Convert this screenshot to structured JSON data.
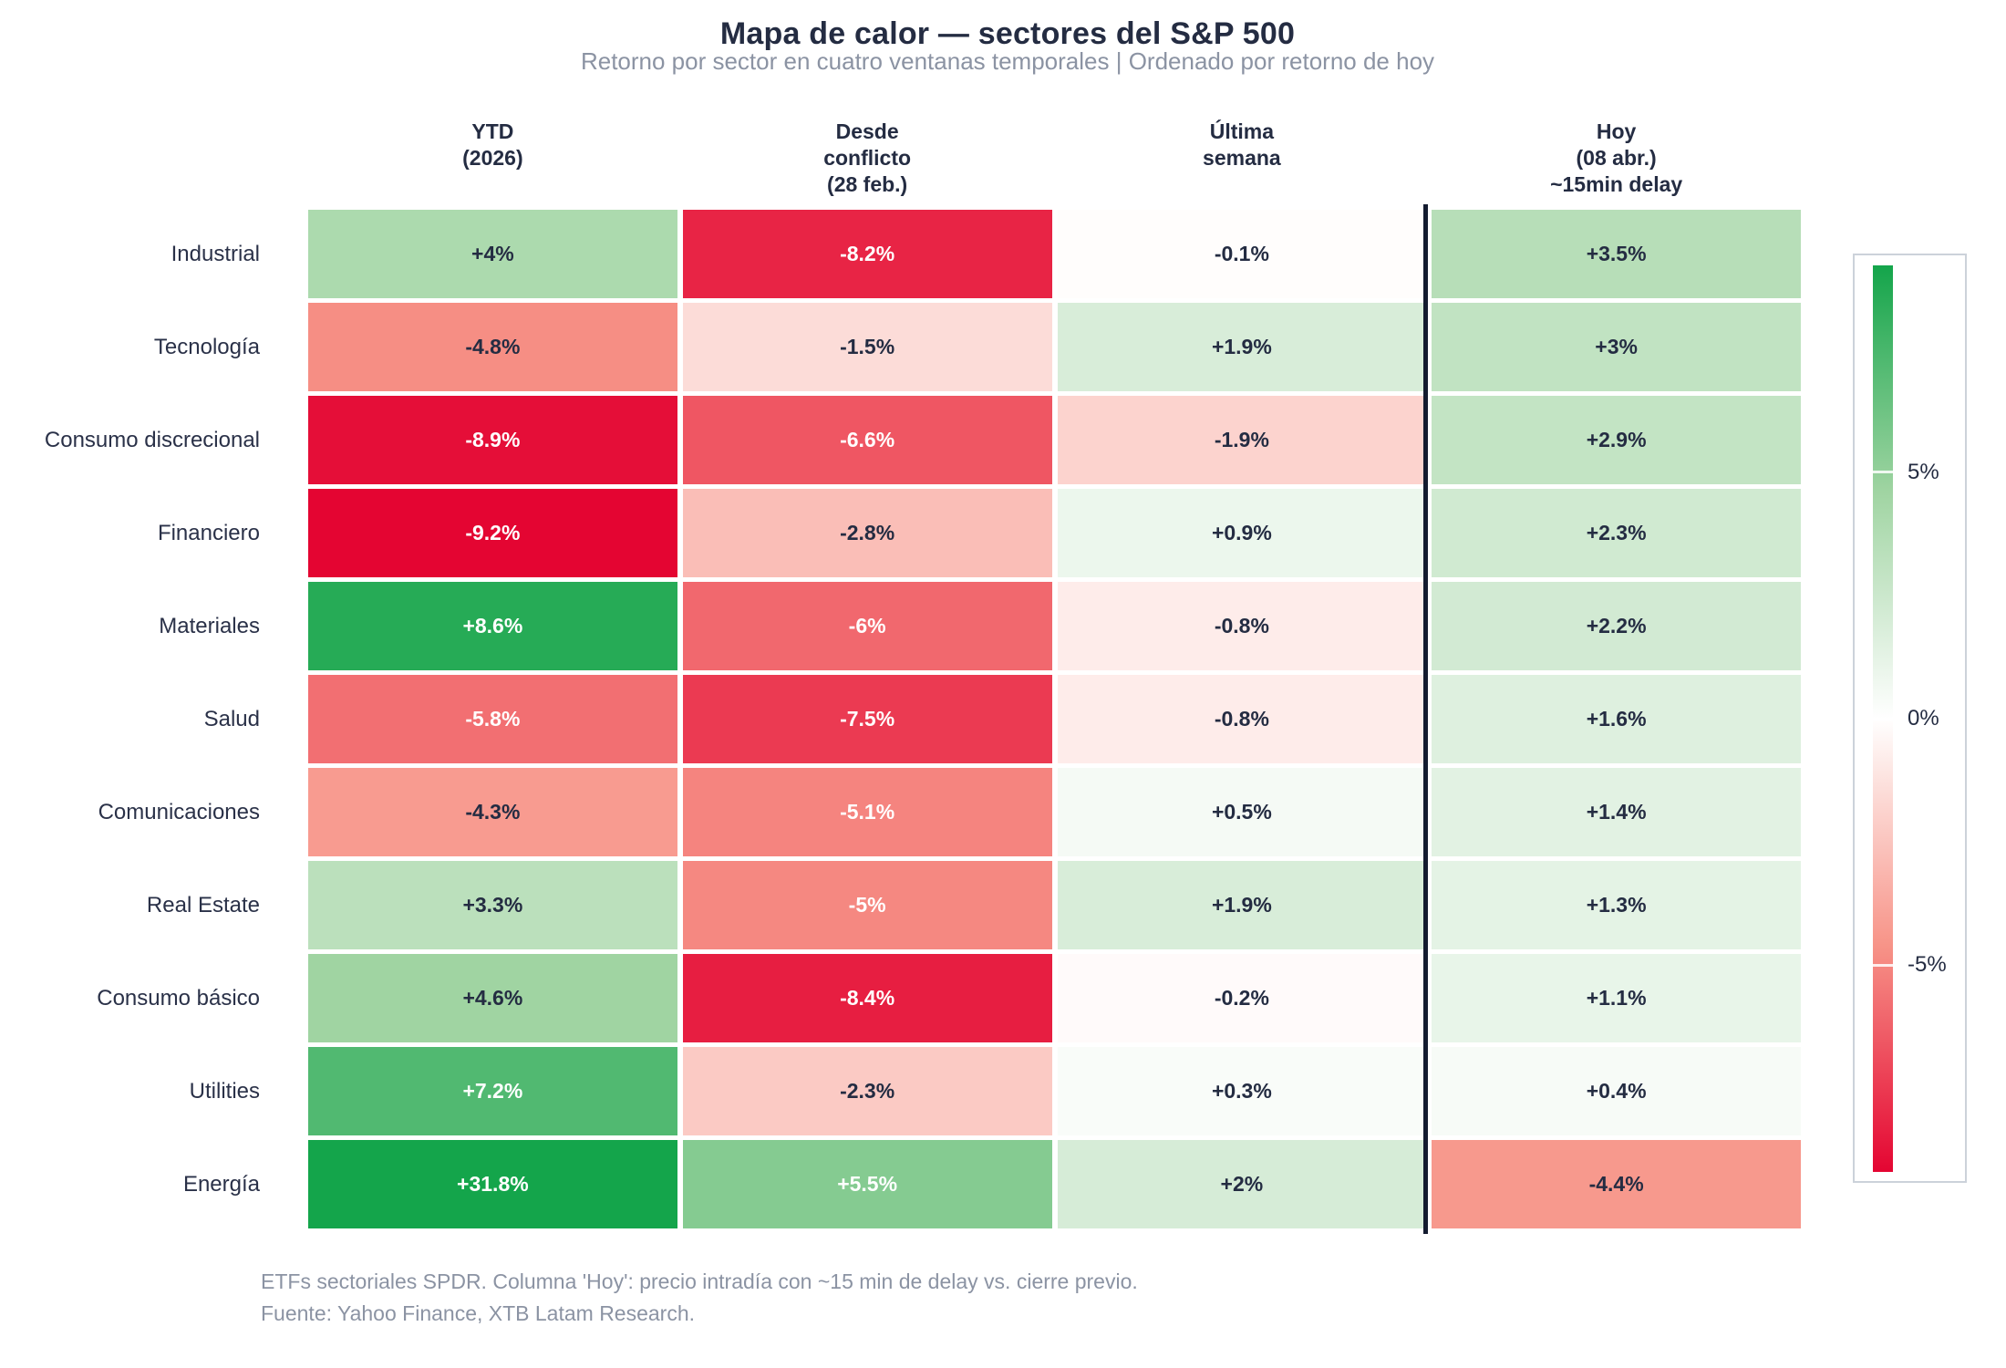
{
  "chart_data": {
    "type": "heatmap",
    "title": "Mapa de calor — sectores del S&P 500",
    "subtitle": "Retorno por sector en cuatro ventanas temporales | Ordenado por retorno de hoy",
    "column_headers": [
      [
        "YTD",
        "(2026)"
      ],
      [
        "Desde",
        "conflicto",
        "(28 feb.)"
      ],
      [
        "Última",
        "semana"
      ],
      [
        "Hoy",
        "(08 abr.)",
        "~15min delay"
      ]
    ],
    "rows": [
      "Industrial",
      "Tecnología",
      "Consumo discrecional",
      "Financiero",
      "Materiales",
      "Salud",
      "Comunicaciones",
      "Real Estate",
      "Consumo básico",
      "Utilities",
      "Energía"
    ],
    "values": [
      [
        4,
        -8.2,
        -0.1,
        3.5
      ],
      [
        -4.8,
        -1.5,
        1.9,
        3
      ],
      [
        -8.9,
        -6.6,
        -1.9,
        2.9
      ],
      [
        -9.2,
        -2.8,
        0.9,
        2.3
      ],
      [
        8.6,
        -6,
        -0.8,
        2.2
      ],
      [
        -5.8,
        -7.5,
        -0.8,
        1.6
      ],
      [
        -4.3,
        -5.1,
        0.5,
        1.4
      ],
      [
        3.3,
        -5,
        1.9,
        1.3
      ],
      [
        4.6,
        -8.4,
        -0.2,
        1.1
      ],
      [
        7.2,
        -2.3,
        0.3,
        0.4
      ],
      [
        31.8,
        5.5,
        2,
        -4.4
      ]
    ],
    "cell_labels": [
      [
        "+4%",
        "-8.2%",
        "-0.1%",
        "+3.5%"
      ],
      [
        "-4.8%",
        "-1.5%",
        "+1.9%",
        "+3%"
      ],
      [
        "-8.9%",
        "-6.6%",
        "-1.9%",
        "+2.9%"
      ],
      [
        "-9.2%",
        "-2.8%",
        "+0.9%",
        "+2.3%"
      ],
      [
        "+8.6%",
        "-6%",
        "-0.8%",
        "+2.2%"
      ],
      [
        "-5.8%",
        "-7.5%",
        "-0.8%",
        "+1.6%"
      ],
      [
        "-4.3%",
        "-5.1%",
        "+0.5%",
        "+1.4%"
      ],
      [
        "+3.3%",
        "-5%",
        "+1.9%",
        "+1.3%"
      ],
      [
        "+4.6%",
        "-8.4%",
        "-0.2%",
        "+1.1%"
      ],
      [
        "+7.2%",
        "-2.3%",
        "+0.3%",
        "+0.4%"
      ],
      [
        "+31.8%",
        "+5.5%",
        "+2%",
        "-4.4%"
      ]
    ],
    "value_unit": "%",
    "colorbar": {
      "tick_labels": [
        "5%",
        "0%",
        "-5%"
      ],
      "tick_values": [
        5,
        0,
        -5
      ],
      "vmin": -9.2,
      "vmax": 9.2
    },
    "footnote": [
      "ETFs sectoriales SPDR. Columna 'Hoy': precio intradía con ~15 min de delay vs. cierre previo.",
      "Fuente: Yahoo Finance, XTB Latam Research."
    ]
  },
  "colors": {
    "text_dark": "#242c42",
    "text_gray": "#8b93a3",
    "cell_text_light": "#ffffff",
    "divider": "#141c30",
    "white": "#ffffff",
    "green_mid": "#a0d4a2",
    "green_max": "#14a54b",
    "red_mid": "#f79488",
    "red_max": "#e40532",
    "colorbar_border": "#ccd2da",
    "white_text_threshold_abs": 5
  }
}
